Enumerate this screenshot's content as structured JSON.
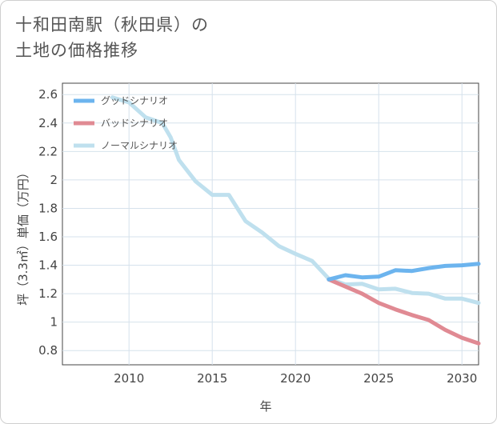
{
  "title_line1": "十和田南駅（秋田県）の",
  "title_line2": "土地の価格推移",
  "chart_data": {
    "type": "line",
    "xlabel": "年",
    "ylabel": "坪（3.3㎡）単価（万円）",
    "xlim": [
      2006,
      2031
    ],
    "ylim": [
      0.7,
      2.68
    ],
    "x_ticks": [
      2010,
      2015,
      2020,
      2025,
      2030
    ],
    "y_ticks": [
      0.8,
      1,
      1.2,
      1.4,
      1.6,
      1.8,
      2,
      2.2,
      2.4,
      2.6
    ],
    "grid": true,
    "legend_position": "top-left",
    "series": [
      {
        "name": "グッドシナリオ",
        "color": "#6cb4ee",
        "points": [
          [
            2022,
            1.3
          ],
          [
            2023,
            1.33
          ],
          [
            2024,
            1.315
          ],
          [
            2025,
            1.32
          ],
          [
            2026,
            1.365
          ],
          [
            2027,
            1.36
          ],
          [
            2028,
            1.38
          ],
          [
            2029,
            1.395
          ],
          [
            2030,
            1.4
          ],
          [
            2031,
            1.41
          ]
        ]
      },
      {
        "name": "バッドシナリオ",
        "color": "#e08a93",
        "points": [
          [
            2022,
            1.3
          ],
          [
            2023,
            1.25
          ],
          [
            2024,
            1.2
          ],
          [
            2025,
            1.135
          ],
          [
            2026,
            1.09
          ],
          [
            2027,
            1.05
          ],
          [
            2028,
            1.015
          ],
          [
            2029,
            0.945
          ],
          [
            2030,
            0.89
          ],
          [
            2031,
            0.85
          ]
        ]
      },
      {
        "name": "ノーマルシナリオ",
        "color": "#bfe0ee",
        "points": [
          [
            2009,
            2.58
          ],
          [
            2010,
            2.545
          ],
          [
            2011,
            2.44
          ],
          [
            2012,
            2.4
          ],
          [
            2012.5,
            2.3
          ],
          [
            2013,
            2.14
          ],
          [
            2014,
            1.99
          ],
          [
            2015,
            1.895
          ],
          [
            2016,
            1.895
          ],
          [
            2017,
            1.71
          ],
          [
            2018,
            1.63
          ],
          [
            2019,
            1.535
          ],
          [
            2020,
            1.48
          ],
          [
            2021,
            1.43
          ],
          [
            2022,
            1.305
          ],
          [
            2023,
            1.265
          ],
          [
            2024,
            1.27
          ],
          [
            2025,
            1.23
          ],
          [
            2026,
            1.235
          ],
          [
            2027,
            1.205
          ],
          [
            2028,
            1.2
          ],
          [
            2029,
            1.165
          ],
          [
            2030,
            1.165
          ],
          [
            2031,
            1.135
          ]
        ]
      }
    ]
  }
}
